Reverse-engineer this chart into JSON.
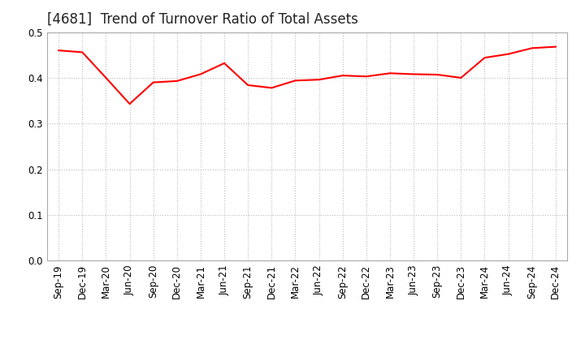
{
  "title": "[4681]  Trend of Turnover Ratio of Total Assets",
  "line_color": "#FF0000",
  "line_width": 1.5,
  "background_color": "#FFFFFF",
  "grid_color": "#BBBBBB",
  "ylim": [
    0.0,
    0.5
  ],
  "yticks": [
    0.0,
    0.1,
    0.2,
    0.3,
    0.4,
    0.5
  ],
  "x_labels": [
    "Sep-19",
    "Dec-19",
    "Mar-20",
    "Jun-20",
    "Sep-20",
    "Dec-20",
    "Mar-21",
    "Jun-21",
    "Sep-21",
    "Dec-21",
    "Mar-22",
    "Jun-22",
    "Sep-22",
    "Dec-22",
    "Mar-23",
    "Jun-23",
    "Sep-23",
    "Dec-23",
    "Mar-24",
    "Jun-24",
    "Sep-24",
    "Dec-24"
  ],
  "values": [
    0.46,
    0.456,
    0.4,
    0.343,
    0.39,
    0.393,
    0.408,
    0.432,
    0.384,
    0.378,
    0.394,
    0.396,
    0.405,
    0.403,
    0.41,
    0.408,
    0.407,
    0.4,
    0.444,
    0.452,
    0.465,
    0.468
  ],
  "title_fontsize": 12,
  "tick_fontsize": 8.5,
  "title_color": "#222222"
}
